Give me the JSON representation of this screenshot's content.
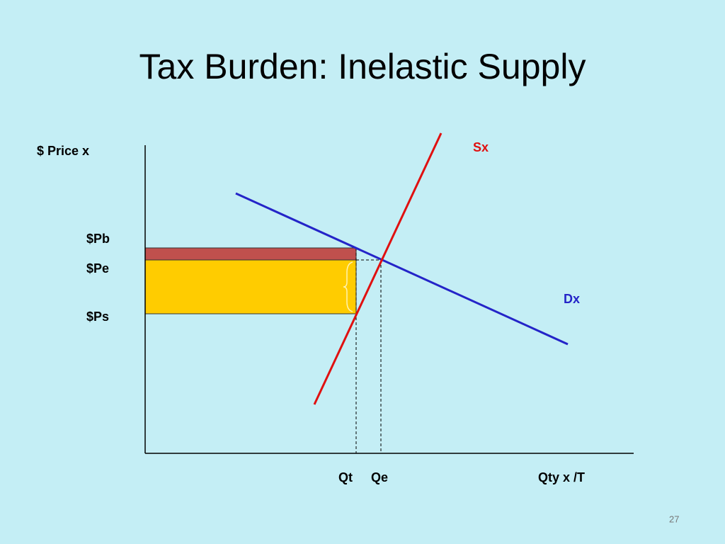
{
  "title": "Tax Burden: Inelastic Supply",
  "axes": {
    "y_label": "$ Price x",
    "x_label": "Qty x /T"
  },
  "curves": {
    "supply": "Sx",
    "demand": "Dx"
  },
  "price_labels": [
    "$Pb",
    "$Pe",
    "$Ps"
  ],
  "quantity_labels": [
    "Qt",
    "Qe"
  ],
  "page_number": "27"
}
